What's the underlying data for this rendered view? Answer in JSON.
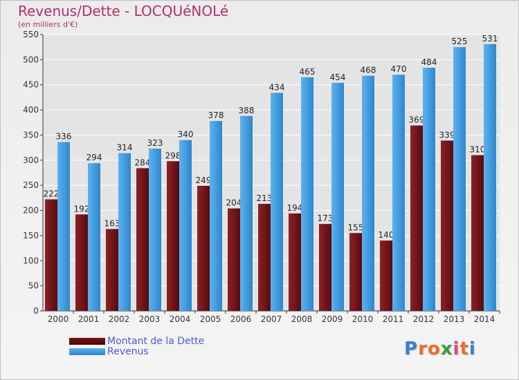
{
  "title": "Revenus/Dette - LOCQUéNOLé",
  "subtitle": "(en milliers d'€)",
  "logo": {
    "letters": [
      "P",
      "r",
      "o",
      "x",
      "i",
      "t",
      "i"
    ],
    "colors": [
      "#3a7fc8",
      "#e8702a",
      "#e8702a",
      "#3a9d3a",
      "#d84a8a",
      "#e8702a",
      "#3a7fc8"
    ]
  },
  "colors": {
    "dette": "#7a1418",
    "revenus": "#3d98dc",
    "axis": "#333333",
    "grid": "#ffffff",
    "plot_bg": "#e4e4e4"
  },
  "chart_data": {
    "type": "bar",
    "categories": [
      "2000",
      "2001",
      "2002",
      "2003",
      "2004",
      "2005",
      "2006",
      "2007",
      "2008",
      "2009",
      "2010",
      "2011",
      "2012",
      "2013",
      "2014"
    ],
    "series": [
      {
        "name": "Montant de la Dette",
        "values": [
          222,
          192,
          163,
          284,
          298,
          249,
          204,
          213,
          194,
          173,
          155,
          140,
          369,
          339,
          310
        ]
      },
      {
        "name": "Revenus",
        "values": [
          336,
          294,
          314,
          323,
          340,
          378,
          388,
          434,
          465,
          454,
          468,
          470,
          484,
          525,
          531
        ]
      }
    ],
    "yticks": [
      0,
      50,
      100,
      150,
      200,
      250,
      300,
      350,
      400,
      450,
      500,
      550
    ],
    "ylim": [
      0,
      550
    ],
    "grid": true,
    "legend_position": "bottom-left"
  }
}
